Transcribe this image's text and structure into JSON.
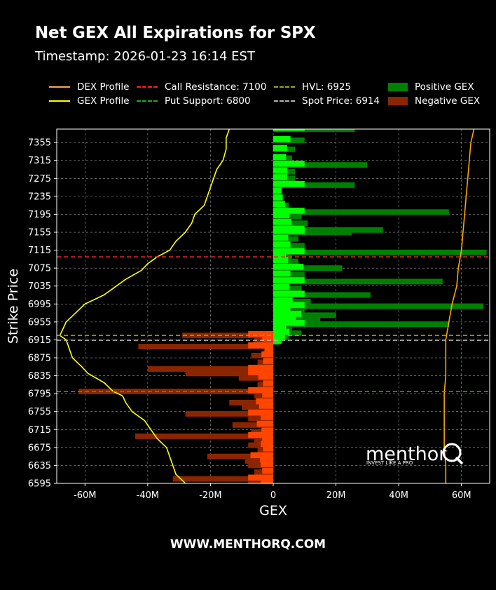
{
  "header": {
    "title": "Net GEX All Expirations for SPX",
    "timestamp": "Timestamp: 2026-01-23 16:14 EST"
  },
  "legend": [
    {
      "label": "DEX Profile",
      "color": "#ffa54f",
      "style": "solid"
    },
    {
      "label": "GEX Profile",
      "color": "#ffff00",
      "style": "solid"
    },
    {
      "label": "Call Resistance: 7100",
      "color": "#ff2020",
      "style": "dashed"
    },
    {
      "label": "Put Support: 6800",
      "color": "#22aa22",
      "style": "dashed"
    },
    {
      "label": "HVL: 6925",
      "color": "#a0a020",
      "style": "dashed"
    },
    {
      "label": "Spot Price: 6914",
      "color": "#b0b0b0",
      "style": "dashed"
    },
    {
      "label": "Positive GEX",
      "color": "#008000",
      "style": "box"
    },
    {
      "label": "Negative GEX",
      "color": "#8b2500",
      "style": "box"
    }
  ],
  "footer": {
    "text": "WWW.MENTHORQ.COM"
  },
  "watermark": {
    "brand": "menthor",
    "tagline": "INVEST LIKE A PRO"
  },
  "chart_data": {
    "type": "bar",
    "orientation": "horizontal",
    "xlabel": "GEX",
    "ylabel": "Strike Price",
    "xlim": [
      -69,
      69
    ],
    "ylim": [
      6595,
      7385
    ],
    "x_ticks": [
      -60,
      -40,
      -20,
      0,
      20,
      40,
      60
    ],
    "x_tick_labels": [
      "-60M",
      "-40M",
      "-20M",
      "0",
      "20M",
      "40M",
      "60M"
    ],
    "y_ticks": [
      6595,
      6635,
      6675,
      6715,
      6755,
      6795,
      6835,
      6875,
      6915,
      6955,
      6995,
      7035,
      7075,
      7115,
      7155,
      7195,
      7235,
      7275,
      7315,
      7355
    ],
    "grid": true,
    "levels": {
      "call_resistance": 7100,
      "put_support": 6800,
      "hvl": 6925,
      "spot_price": 6914
    },
    "colors": {
      "positive": "#008000",
      "negative": "#8b2500",
      "positive_near": "#00ff00",
      "negative_near": "#ff4500",
      "dex": "#ffa500",
      "gex": "#ffff00"
    },
    "series": [
      {
        "name": "Positive GEX",
        "points": [
          [
            7385,
            26
          ],
          [
            7360,
            10
          ],
          [
            7340,
            7
          ],
          [
            7320,
            6
          ],
          [
            7305,
            30
          ],
          [
            7290,
            7
          ],
          [
            7275,
            7
          ],
          [
            7260,
            26
          ],
          [
            7245,
            2
          ],
          [
            7230,
            3
          ],
          [
            7215,
            5
          ],
          [
            7200,
            56
          ],
          [
            7190,
            9
          ],
          [
            7175,
            11
          ],
          [
            7160,
            35
          ],
          [
            7155,
            25
          ],
          [
            7140,
            8
          ],
          [
            7125,
            10
          ],
          [
            7110,
            68
          ],
          [
            7100,
            6
          ],
          [
            7090,
            8
          ],
          [
            7075,
            22
          ],
          [
            7060,
            10
          ],
          [
            7045,
            54
          ],
          [
            7030,
            9
          ],
          [
            7015,
            31
          ],
          [
            7000,
            12
          ],
          [
            6990,
            67
          ],
          [
            6980,
            10
          ],
          [
            6970,
            20
          ],
          [
            6960,
            15
          ],
          [
            6950,
            56
          ],
          [
            6940,
            6
          ],
          [
            6930,
            9
          ],
          [
            6920,
            5
          ],
          [
            6910,
            2
          ]
        ]
      },
      {
        "name": "Negative GEX",
        "points": [
          [
            6925,
            -29
          ],
          [
            6915,
            -6
          ],
          [
            6900,
            -43
          ],
          [
            6890,
            -3
          ],
          [
            6880,
            -7
          ],
          [
            6865,
            -5
          ],
          [
            6850,
            -40
          ],
          [
            6840,
            -28
          ],
          [
            6830,
            -11
          ],
          [
            6815,
            -5
          ],
          [
            6800,
            -62
          ],
          [
            6790,
            -6
          ],
          [
            6775,
            -14
          ],
          [
            6765,
            -10
          ],
          [
            6750,
            -28
          ],
          [
            6740,
            -8
          ],
          [
            6725,
            -13
          ],
          [
            6710,
            -7
          ],
          [
            6700,
            -44
          ],
          [
            6690,
            -6
          ],
          [
            6680,
            -8
          ],
          [
            6670,
            -5
          ],
          [
            6655,
            -21
          ],
          [
            6645,
            -9
          ],
          [
            6635,
            -8
          ],
          [
            6620,
            -6
          ],
          [
            6605,
            -32
          ],
          [
            6597,
            -8
          ]
        ]
      },
      {
        "name": "DEX Profile",
        "points": [
          [
            7385,
            64
          ],
          [
            7355,
            63
          ],
          [
            7315,
            62.5
          ],
          [
            7275,
            62
          ],
          [
            7235,
            61.5
          ],
          [
            7195,
            61
          ],
          [
            7155,
            60.5
          ],
          [
            7115,
            60
          ],
          [
            7075,
            59
          ],
          [
            7035,
            58.5
          ],
          [
            6995,
            57
          ],
          [
            6955,
            56
          ],
          [
            6915,
            55
          ],
          [
            6875,
            55
          ],
          [
            6835,
            55
          ],
          [
            6795,
            54.5
          ],
          [
            6755,
            54.5
          ],
          [
            6715,
            54.5
          ],
          [
            6675,
            54.5
          ],
          [
            6635,
            55
          ],
          [
            6595,
            55
          ]
        ]
      },
      {
        "name": "GEX Profile",
        "points": [
          [
            7385,
            -14
          ],
          [
            7365,
            -15
          ],
          [
            7340,
            -15
          ],
          [
            7315,
            -16
          ],
          [
            7295,
            -18
          ],
          [
            7275,
            -19
          ],
          [
            7255,
            -20
          ],
          [
            7235,
            -21
          ],
          [
            7215,
            -22
          ],
          [
            7195,
            -25
          ],
          [
            7175,
            -26
          ],
          [
            7155,
            -28
          ],
          [
            7135,
            -31
          ],
          [
            7115,
            -33
          ],
          [
            7100,
            -37
          ],
          [
            7085,
            -40
          ],
          [
            7070,
            -42
          ],
          [
            7050,
            -47
          ],
          [
            7035,
            -50
          ],
          [
            7015,
            -54
          ],
          [
            6995,
            -60
          ],
          [
            6975,
            -63
          ],
          [
            6955,
            -66
          ],
          [
            6940,
            -67
          ],
          [
            6925,
            -68
          ],
          [
            6915,
            -66
          ],
          [
            6895,
            -65
          ],
          [
            6875,
            -64
          ],
          [
            6855,
            -61
          ],
          [
            6840,
            -59
          ],
          [
            6820,
            -54
          ],
          [
            6800,
            -51
          ],
          [
            6790,
            -48
          ],
          [
            6775,
            -47
          ],
          [
            6755,
            -45
          ],
          [
            6735,
            -41
          ],
          [
            6715,
            -39
          ],
          [
            6695,
            -37
          ],
          [
            6675,
            -34
          ],
          [
            6655,
            -33
          ],
          [
            6635,
            -32
          ],
          [
            6615,
            -31
          ],
          [
            6595,
            -28
          ]
        ]
      }
    ]
  }
}
